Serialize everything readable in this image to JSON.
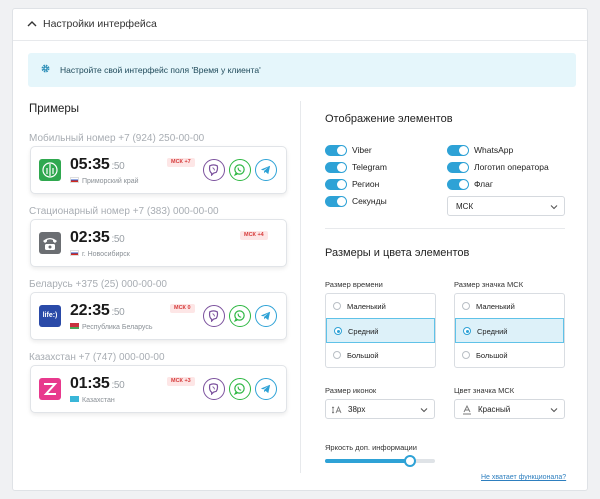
{
  "header": {
    "title": "Настройки интерфейса"
  },
  "banner": {
    "text": "Настройте свой интерфейс поля 'Время у клиента'"
  },
  "examples": {
    "title": "Примеры",
    "items": [
      {
        "label": "Мобильный номер +7 (924) 250-00-00",
        "time": "05:35",
        "sec": ":50",
        "region": "Приморский край",
        "msk": "МСК +7",
        "icon": "megafon",
        "icon_color": "#2fa84f",
        "flag": "ru"
      },
      {
        "label": "Стационарный номер +7 (383) 000-00-00",
        "time": "02:35",
        "sec": ":50",
        "region": "г. Новосибирск",
        "msk": "МСК +4",
        "icon": "phone",
        "icon_color": "#6b6e72",
        "flag": "ru"
      },
      {
        "label": "Беларусь +375 (25) 000-00-00",
        "time": "22:35",
        "sec": ":50",
        "region": "Республика Беларусь",
        "msk": "МСК 0",
        "icon": "life",
        "icon_color": "#2a4aa8",
        "icon_text": "life:)",
        "flag": "by"
      },
      {
        "label": "Казахстан +7 (747) 000-00-00",
        "time": "01:35",
        "sec": ":50",
        "region": "Казахстан",
        "msk": "МСК +3",
        "icon": "altel",
        "icon_color": "#e8398d",
        "flag": "kz"
      }
    ],
    "messenger_colors": {
      "viber": "#7b519d",
      "whatsapp": "#2db742",
      "telegram": "#2ea2d6"
    }
  },
  "display": {
    "title": "Отображение элементов",
    "toggles_left": [
      "Viber",
      "Telegram",
      "Регион",
      "Секунды"
    ],
    "toggles_right": [
      "WhatsApp",
      "Логотип оператора",
      "Флаг"
    ],
    "timezone_select": "МСК"
  },
  "sizes": {
    "title": "Размеры и цвета элементов",
    "time_size": {
      "label": "Размер времени",
      "options": [
        "Маленький",
        "Средний",
        "Большой"
      ],
      "selected": 1
    },
    "msk_icon_size": {
      "label": "Размер значка МСК",
      "options": [
        "Маленький",
        "Средний",
        "Большой"
      ],
      "selected": 1
    },
    "icon_size": {
      "label": "Размер иконок",
      "value": "38px"
    },
    "msk_color": {
      "label": "Цвет значка МСК",
      "value": "Красный"
    },
    "brightness": {
      "label": "Яркость доп. информации",
      "level": 0.77
    }
  },
  "footer": {
    "link": "Не хватает функционала?"
  },
  "colors": {
    "accent": "#2ea2d6",
    "banner_bg": "#e5f6fb"
  }
}
